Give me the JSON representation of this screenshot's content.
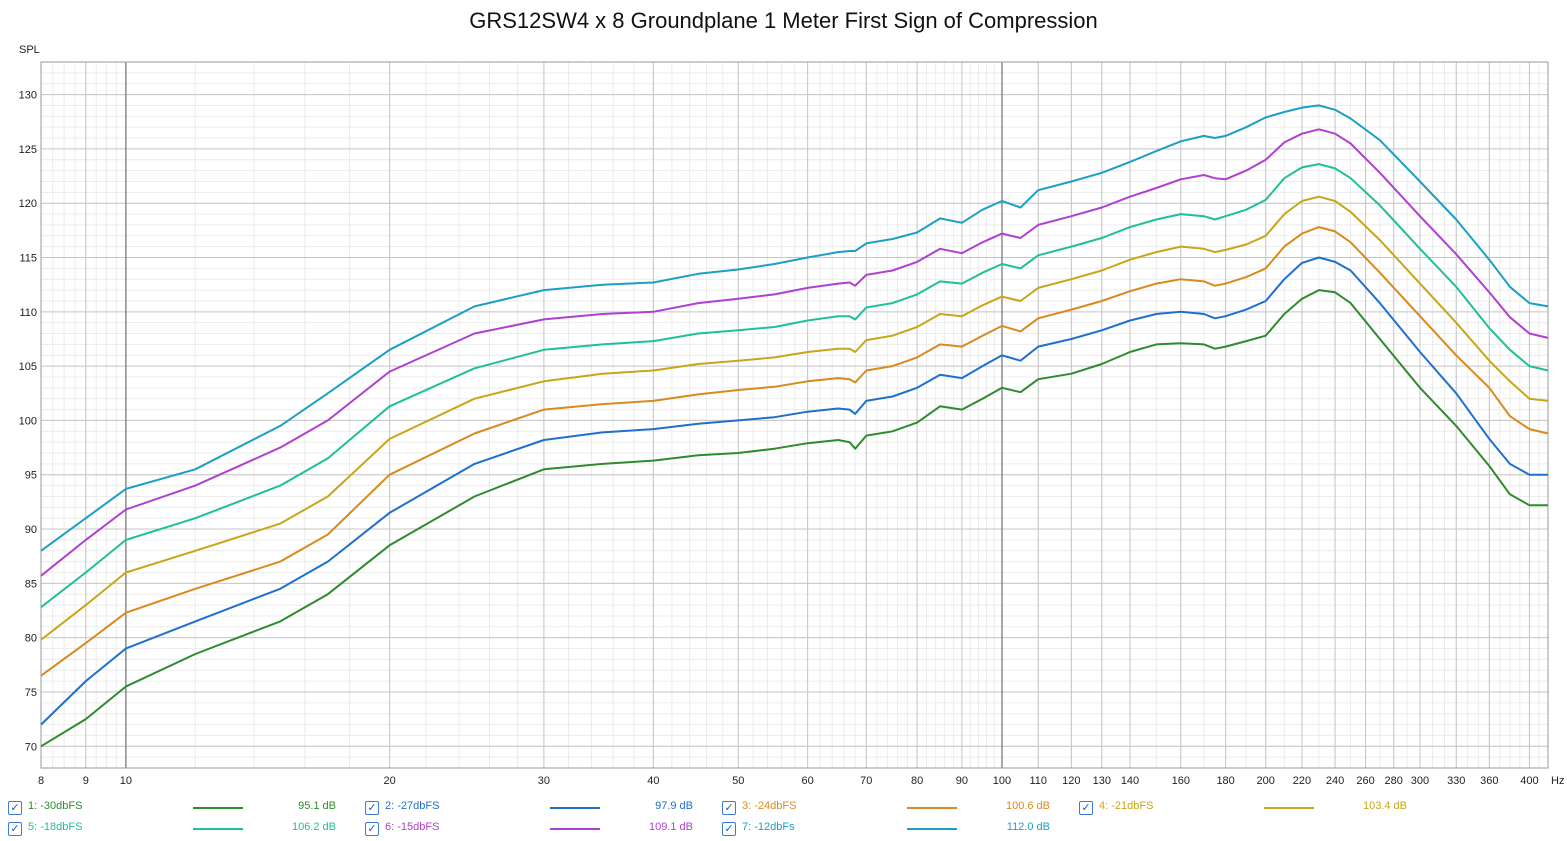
{
  "chart_data": {
    "type": "line",
    "title": "GRS12SW4 x 8 Groundplane 1 Meter First Sign of Compression",
    "ylabel": "SPL",
    "xunit": "Hz",
    "xscale": "log",
    "xlim": [
      8,
      420
    ],
    "ylim": [
      68,
      133
    ],
    "grid": true,
    "legend_position": "bottom",
    "y_ticks": [
      70,
      75,
      80,
      85,
      90,
      95,
      100,
      105,
      110,
      115,
      120,
      125,
      130
    ],
    "x_ticks": [
      8,
      9,
      10,
      20,
      30,
      40,
      50,
      60,
      70,
      80,
      90,
      100,
      110,
      120,
      130,
      140,
      160,
      180,
      200,
      220,
      240,
      260,
      280,
      300,
      330,
      360,
      400
    ],
    "x_tick_labels": [
      "8",
      "9",
      "10",
      "20",
      "30",
      "40",
      "50",
      "60",
      "70",
      "80",
      "90",
      "100",
      "110",
      "120",
      "130",
      "140",
      "160",
      "180",
      "200",
      "220",
      "240",
      "260",
      "280",
      "300",
      "330",
      "360",
      "400"
    ],
    "x": [
      8,
      9,
      10,
      12,
      15,
      17,
      20,
      25,
      30,
      35,
      40,
      45,
      50,
      55,
      60,
      65,
      67,
      68,
      70,
      75,
      80,
      85,
      90,
      95,
      100,
      105,
      110,
      120,
      130,
      140,
      150,
      160,
      170,
      175,
      180,
      190,
      200,
      210,
      220,
      230,
      240,
      250,
      270,
      300,
      330,
      360,
      380,
      400,
      420
    ],
    "series": [
      {
        "name": "1: -30dbFS",
        "value_label": "95.1 dB",
        "color": "#2e8b2e",
        "values": [
          70.0,
          72.5,
          75.5,
          78.5,
          81.5,
          84.0,
          88.5,
          93.0,
          95.5,
          96.0,
          96.3,
          96.8,
          97.0,
          97.4,
          97.9,
          98.2,
          98.0,
          97.4,
          98.6,
          99.0,
          99.8,
          101.3,
          101.0,
          102.0,
          103.0,
          102.6,
          103.8,
          104.3,
          105.2,
          106.3,
          107.0,
          107.1,
          107.0,
          106.6,
          106.8,
          107.3,
          107.8,
          109.8,
          111.2,
          112.0,
          111.8,
          110.8,
          107.5,
          103.0,
          99.5,
          95.8,
          93.2,
          92.2,
          92.2
        ]
      },
      {
        "name": "2: -27dbFS",
        "value_label": "97.9 dB",
        "color": "#1f6fcf",
        "values": [
          72.0,
          76.0,
          79.0,
          81.5,
          84.5,
          87.0,
          91.5,
          96.0,
          98.2,
          98.9,
          99.2,
          99.7,
          100.0,
          100.3,
          100.8,
          101.1,
          101.0,
          100.6,
          101.8,
          102.2,
          103.0,
          104.2,
          103.9,
          105.0,
          106.0,
          105.5,
          106.8,
          107.5,
          108.3,
          109.2,
          109.8,
          110.0,
          109.8,
          109.4,
          109.6,
          110.2,
          111.0,
          113.0,
          114.5,
          115.0,
          114.6,
          113.8,
          110.8,
          106.3,
          102.5,
          98.3,
          96.0,
          95.0,
          95.0
        ]
      },
      {
        "name": "3: -24dbFS",
        "value_label": "100.6 dB",
        "color": "#d98a1c",
        "values": [
          76.5,
          79.5,
          82.3,
          84.5,
          87.0,
          89.5,
          95.0,
          98.8,
          101.0,
          101.5,
          101.8,
          102.4,
          102.8,
          103.1,
          103.6,
          103.9,
          103.8,
          103.5,
          104.6,
          105.0,
          105.8,
          107.0,
          106.8,
          107.8,
          108.7,
          108.2,
          109.4,
          110.2,
          111.0,
          111.9,
          112.6,
          113.0,
          112.8,
          112.4,
          112.6,
          113.2,
          114.0,
          116.0,
          117.2,
          117.8,
          117.4,
          116.4,
          113.6,
          109.6,
          106.0,
          103.0,
          100.4,
          99.2,
          98.8
        ]
      },
      {
        "name": "4: -21dbFS",
        "value_label": "103.4 dB",
        "color": "#c9a51a",
        "values": [
          79.8,
          83.0,
          86.0,
          88.0,
          90.5,
          93.0,
          98.3,
          102.0,
          103.6,
          104.3,
          104.6,
          105.2,
          105.5,
          105.8,
          106.3,
          106.6,
          106.6,
          106.3,
          107.4,
          107.8,
          108.6,
          109.8,
          109.6,
          110.6,
          111.4,
          111.0,
          112.2,
          113.0,
          113.8,
          114.8,
          115.5,
          116.0,
          115.8,
          115.5,
          115.7,
          116.2,
          117.0,
          119.0,
          120.2,
          120.6,
          120.2,
          119.2,
          116.6,
          112.6,
          109.0,
          105.5,
          103.6,
          102.0,
          101.8
        ]
      },
      {
        "name": "5: -18dbFS",
        "value_label": "106.2 dB",
        "color": "#1fbf9a",
        "values": [
          82.8,
          86.0,
          89.0,
          91.0,
          94.0,
          96.5,
          101.3,
          104.8,
          106.5,
          107.0,
          107.3,
          108.0,
          108.3,
          108.6,
          109.2,
          109.6,
          109.6,
          109.3,
          110.4,
          110.8,
          111.6,
          112.8,
          112.6,
          113.6,
          114.4,
          114.0,
          115.2,
          116.0,
          116.8,
          117.8,
          118.5,
          119.0,
          118.8,
          118.5,
          118.8,
          119.4,
          120.3,
          122.3,
          123.3,
          123.6,
          123.2,
          122.3,
          119.8,
          115.8,
          112.3,
          108.5,
          106.5,
          105.0,
          104.6
        ]
      },
      {
        "name": "6: -15dbFS",
        "value_label": "109.1 dB",
        "color": "#b040d0",
        "values": [
          85.7,
          89.0,
          91.8,
          94.0,
          97.5,
          100.0,
          104.5,
          108.0,
          109.3,
          109.8,
          110.0,
          110.8,
          111.2,
          111.6,
          112.2,
          112.6,
          112.7,
          112.4,
          113.4,
          113.8,
          114.6,
          115.8,
          115.4,
          116.4,
          117.2,
          116.8,
          118.0,
          118.8,
          119.6,
          120.6,
          121.4,
          122.2,
          122.6,
          122.3,
          122.2,
          123.0,
          124.0,
          125.6,
          126.4,
          126.8,
          126.4,
          125.5,
          122.8,
          118.8,
          115.3,
          111.8,
          109.5,
          108.0,
          107.6
        ]
      },
      {
        "name": "7: -12dbFs",
        "value_label": "112.0 dB",
        "color": "#1b9fc4",
        "values": [
          88.0,
          91.0,
          93.7,
          95.5,
          99.5,
          102.5,
          106.5,
          110.5,
          112.0,
          112.5,
          112.7,
          113.5,
          113.9,
          114.4,
          115.0,
          115.5,
          115.6,
          115.6,
          116.3,
          116.7,
          117.3,
          118.6,
          118.2,
          119.4,
          120.2,
          119.6,
          121.2,
          122.0,
          122.8,
          123.8,
          124.8,
          125.7,
          126.2,
          126.0,
          126.2,
          127.0,
          127.9,
          128.4,
          128.8,
          129.0,
          128.6,
          127.8,
          125.8,
          122.0,
          118.5,
          114.8,
          112.3,
          110.8,
          110.5
        ]
      }
    ]
  }
}
